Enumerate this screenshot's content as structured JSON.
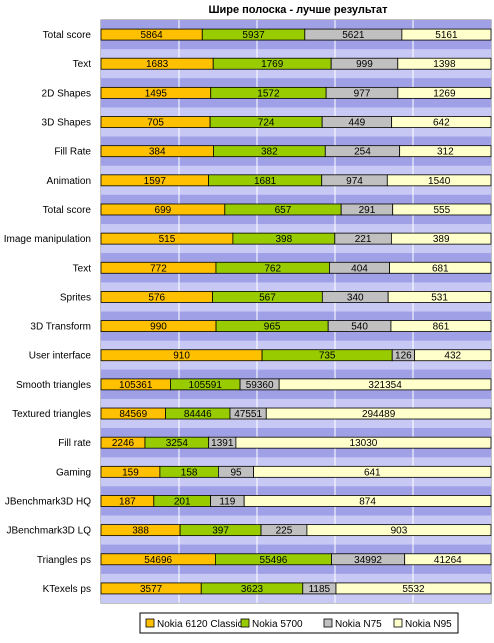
{
  "chart_data": {
    "type": "bar",
    "stacked": "100%",
    "orientation": "horizontal",
    "title": "Шире полоска - лучше результат",
    "categories": [
      "Total score",
      "Text",
      "2D Shapes",
      "3D Shapes",
      "Fill Rate",
      "Animation",
      "Total score",
      "Image manipulation",
      "Text",
      "Sprites",
      "3D Transform",
      "User interface",
      "Smooth triangles",
      "Textured triangles",
      "Fill rate",
      "Gaming",
      "JBenchmark3D HQ",
      "JBenchmark3D LQ",
      "Triangles ps",
      "KTexels ps"
    ],
    "series": [
      {
        "name": "Nokia 6120 Classic",
        "color": "#ffc000",
        "values": [
          5864,
          1683,
          1495,
          705,
          384,
          1597,
          699,
          515,
          772,
          576,
          990,
          910,
          105361,
          84569,
          2246,
          159,
          187,
          388,
          54696,
          3577
        ]
      },
      {
        "name": "Nokia 5700",
        "color": "#99cc00",
        "values": [
          5937,
          1769,
          1572,
          724,
          382,
          1681,
          657,
          398,
          762,
          567,
          965,
          735,
          105591,
          84446,
          3254,
          158,
          201,
          397,
          55496,
          3623
        ]
      },
      {
        "name": "Nokia N75",
        "color": "#c0c0c0",
        "values": [
          5621,
          999,
          977,
          449,
          254,
          974,
          291,
          221,
          404,
          340,
          540,
          126,
          59360,
          47551,
          1391,
          95,
          119,
          225,
          34992,
          1185
        ]
      },
      {
        "name": "Nokia N95",
        "color": "#ffffcc",
        "values": [
          5161,
          1398,
          1269,
          642,
          312,
          1540,
          555,
          389,
          681,
          531,
          861,
          432,
          321354,
          294489,
          13030,
          641,
          874,
          903,
          41264,
          5532
        ]
      }
    ],
    "plot_background": "#9999ff",
    "grid": true,
    "legend_position": "bottom"
  }
}
